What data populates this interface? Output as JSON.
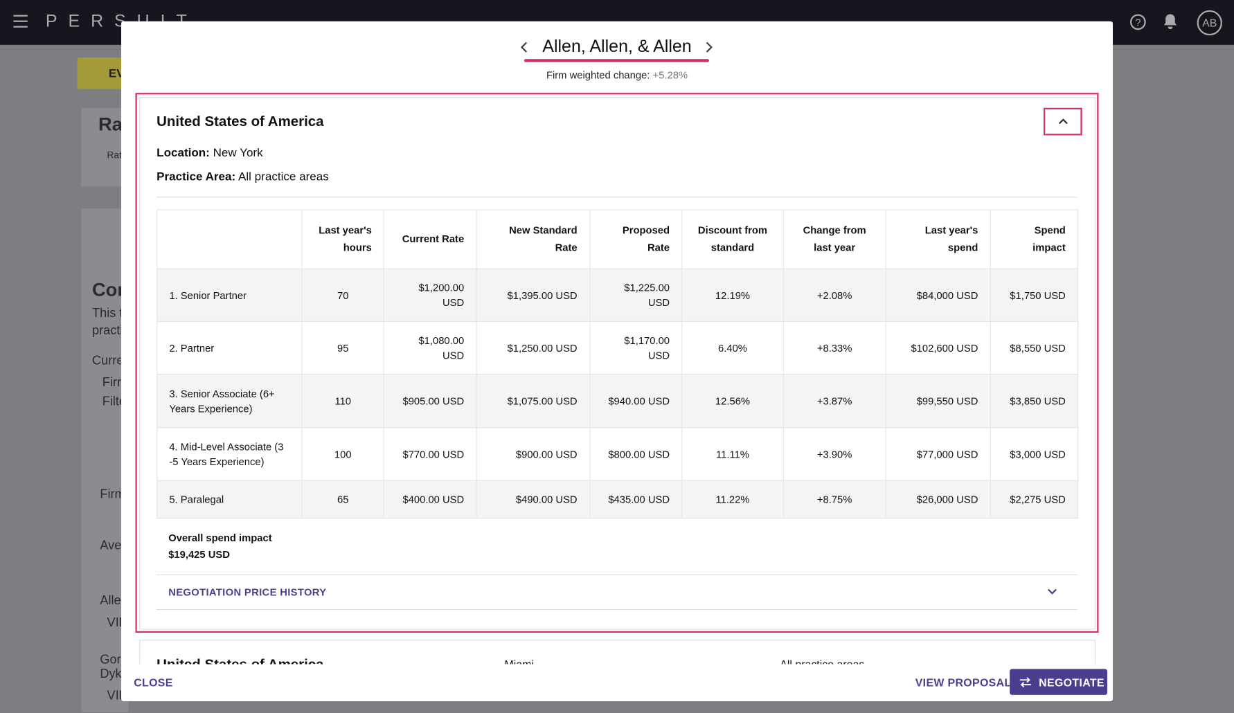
{
  "topbar": {
    "logo": "PERSUIT",
    "avatar": "AB"
  },
  "background": {
    "badge": "EV",
    "fragments": [
      "Ra",
      "Rat",
      "Cor",
      "This t",
      "practi",
      "Curre",
      "Firm",
      "Filte",
      "Firm",
      "Aver",
      "Aller",
      "VIE",
      "Gord",
      "Dyke",
      "VIE"
    ]
  },
  "modal": {
    "title": "Allen, Allen, & Allen",
    "change_label": "Firm weighted change:",
    "change_value": "+5.28%",
    "section": {
      "title": "United States of America",
      "location_label": "Location:",
      "location": "New York",
      "practice_label": "Practice Area:",
      "practice": "All practice areas"
    },
    "table": {
      "headers": [
        "",
        "Last year's hours",
        "Current Rate",
        "New Standard Rate",
        "Proposed Rate",
        "Discount from standard",
        "Change from last year",
        "Last year's spend",
        "Spend impact"
      ],
      "rows": [
        [
          "1. Senior Partner",
          "70",
          "$1,200.00 USD",
          "$1,395.00 USD",
          "$1,225.00 USD",
          "12.19%",
          "+2.08%",
          "$84,000 USD",
          "$1,750 USD"
        ],
        [
          "2. Partner",
          "95",
          "$1,080.00 USD",
          "$1,250.00 USD",
          "$1,170.00 USD",
          "6.40%",
          "+8.33%",
          "$102,600 USD",
          "$8,550 USD"
        ],
        [
          "3. Senior Associate (6+ Years Experience)",
          "110",
          "$905.00 USD",
          "$1,075.00 USD",
          "$940.00 USD",
          "12.56%",
          "+3.87%",
          "$99,550 USD",
          "$3,850 USD"
        ],
        [
          "4. Mid-Level Associate (3 -5 Years Experience)",
          "100",
          "$770.00 USD",
          "$900.00 USD",
          "$800.00 USD",
          "11.11%",
          "+3.90%",
          "$77,000 USD",
          "$3,000 USD"
        ],
        [
          "5. Paralegal",
          "65",
          "$400.00 USD",
          "$490.00 USD",
          "$435.00 USD",
          "11.22%",
          "+8.75%",
          "$26,000 USD",
          "$2,275 USD"
        ]
      ]
    },
    "overall_label": "Overall spend impact",
    "overall_value": "$19,425 USD",
    "history": "NEGOTIATION PRICE HISTORY",
    "next_section": {
      "title": "United States of America",
      "location": "Miami",
      "practice": "All practice areas"
    },
    "footer": {
      "close": "CLOSE",
      "view": "VIEW PROPOSAL",
      "negotiate": "NEGOTIATE"
    }
  }
}
